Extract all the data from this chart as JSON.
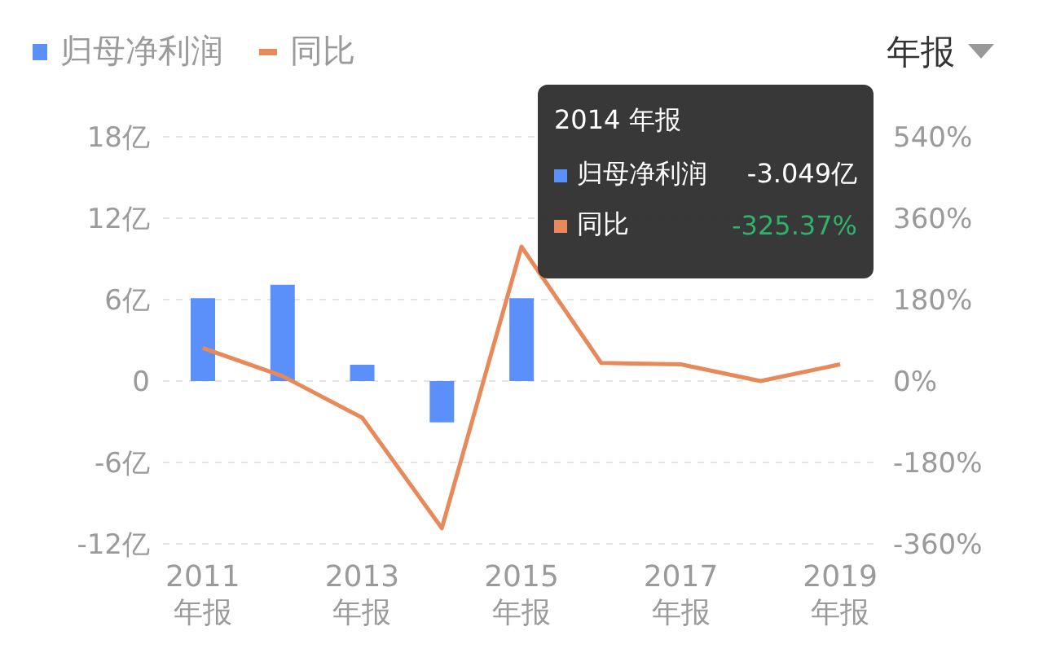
{
  "chart_data": {
    "type": "bar",
    "categories": [
      "2011 年报",
      null,
      "2013 年报",
      null,
      "2015 年报",
      null,
      "2017 年报",
      null,
      "2019 年报"
    ],
    "series": [
      {
        "name": "归母净利润",
        "color": "#5b8ff9",
        "values": [
          6.1,
          7.1,
          1.2,
          -3.049,
          6.1,
          null,
          null,
          null,
          null
        ]
      },
      {
        "name": "同比",
        "type": "line",
        "axis": "y2",
        "color": "#e8895a",
        "values": [
          73,
          11,
          -81,
          -325.37,
          297,
          40,
          37,
          0,
          37
        ]
      }
    ],
    "ylim": [
      -12,
      18
    ],
    "yticks": [
      {
        "value": -12,
        "label": "-12亿"
      },
      {
        "value": -6,
        "label": "-6亿"
      },
      0,
      {
        "value": 6,
        "label": "6亿"
      },
      {
        "value": 12,
        "label": "12亿"
      },
      {
        "value": 18,
        "label": "18亿"
      }
    ],
    "y2lim": [
      -360,
      540
    ],
    "y2ticks": [
      {
        "value": -360,
        "label": "-360%"
      },
      {
        "value": -180,
        "label": "-180%"
      },
      {
        "value": 0,
        "label": "0%"
      },
      {
        "value": 180,
        "label": "180%"
      },
      {
        "value": 360,
        "label": "360%"
      },
      {
        "value": 540,
        "label": "540%"
      }
    ],
    "grid": "y",
    "legend": "top left",
    "annotations": [
      "年报",
      "2014 年报",
      "归母净利润 -3.049亿",
      "同比 -325.37%"
    ]
  }
}
